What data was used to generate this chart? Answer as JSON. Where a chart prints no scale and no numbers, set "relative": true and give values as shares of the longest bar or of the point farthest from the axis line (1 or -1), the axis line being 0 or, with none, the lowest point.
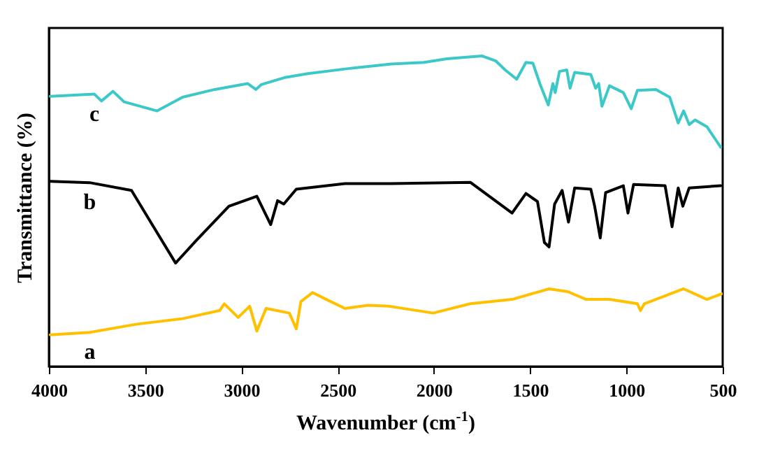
{
  "chart_data": {
    "type": "line",
    "relative": true,
    "xlabel": "Wavenumber (cm$^{-1}$)",
    "ylabel": "Transmittance (%)",
    "xlim": [
      4000,
      500
    ],
    "xticks": [
      4000,
      3500,
      3000,
      2500,
      2000,
      1500,
      1000,
      500
    ],
    "grid": false,
    "legend": false,
    "line_style": "solid",
    "marker": "none",
    "series": [
      {
        "name": "c",
        "color": "#3cc8c8",
        "x": [
          3993,
          3764,
          3727,
          3667,
          3609,
          3438,
          3306,
          3139,
          2968,
          2925,
          2896,
          2778,
          2655,
          2462,
          2221,
          2053,
          1932,
          1751,
          1679,
          1630,
          1570,
          1522,
          1486,
          1450,
          1406,
          1382,
          1370,
          1348,
          1310,
          1293,
          1269,
          1185,
          1160,
          1144,
          1127,
          1088,
          1016,
          975,
          943,
          847,
          775,
          731,
          703,
          674,
          643,
          582,
          510
        ],
        "values": [
          0.87,
          0.877,
          0.855,
          0.886,
          0.852,
          0.823,
          0.867,
          0.892,
          0.911,
          0.892,
          0.908,
          0.93,
          0.943,
          0.958,
          0.974,
          0.979,
          0.991,
          1,
          0.984,
          0.955,
          0.925,
          0.979,
          0.977,
          0.911,
          0.842,
          0.911,
          0.882,
          0.95,
          0.955,
          0.896,
          0.947,
          0.94,
          0.896,
          0.911,
          0.838,
          0.904,
          0.882,
          0.83,
          0.889,
          0.892,
          0.867,
          0.784,
          0.823,
          0.779,
          0.794,
          0.772,
          0.706
        ]
      },
      {
        "name": "b",
        "color": "#000000",
        "x": [
          3993,
          3788,
          3571,
          3450,
          3342,
          3234,
          3065,
          2920,
          2848,
          2812,
          2780,
          2715,
          2462,
          2221,
          1811,
          1594,
          1522,
          1462,
          1426,
          1402,
          1373,
          1334,
          1301,
          1269,
          1185,
          1165,
          1136,
          1108,
          1016,
          992,
          963,
          799,
          763,
          731,
          707,
          674,
          510
        ],
        "values": [
          0.596,
          0.592,
          0.567,
          0.443,
          0.333,
          0.406,
          0.516,
          0.548,
          0.457,
          0.534,
          0.523,
          0.571,
          0.589,
          0.589,
          0.593,
          0.494,
          0.557,
          0.531,
          0.399,
          0.385,
          0.523,
          0.567,
          0.465,
          0.575,
          0.571,
          0.516,
          0.414,
          0.56,
          0.582,
          0.494,
          0.586,
          0.582,
          0.45,
          0.575,
          0.516,
          0.575,
          0.582
        ]
      },
      {
        "name": "a",
        "color": "#ffc000",
        "x": [
          3993,
          3788,
          3547,
          3306,
          3113,
          3089,
          3017,
          2957,
          2920,
          2872,
          2751,
          2715,
          2691,
          2631,
          2559,
          2462,
          2342,
          2233,
          2004,
          1811,
          1594,
          1402,
          1305,
          1209,
          1088,
          943,
          927,
          907,
          703,
          582,
          505
        ],
        "values": [
          0.102,
          0.11,
          0.136,
          0.154,
          0.18,
          0.202,
          0.158,
          0.194,
          0.114,
          0.187,
          0.172,
          0.121,
          0.209,
          0.238,
          0.216,
          0.187,
          0.197,
          0.194,
          0.172,
          0.202,
          0.216,
          0.25,
          0.241,
          0.216,
          0.216,
          0.202,
          0.18,
          0.202,
          0.25,
          0.216,
          0.234
        ]
      }
    ]
  }
}
